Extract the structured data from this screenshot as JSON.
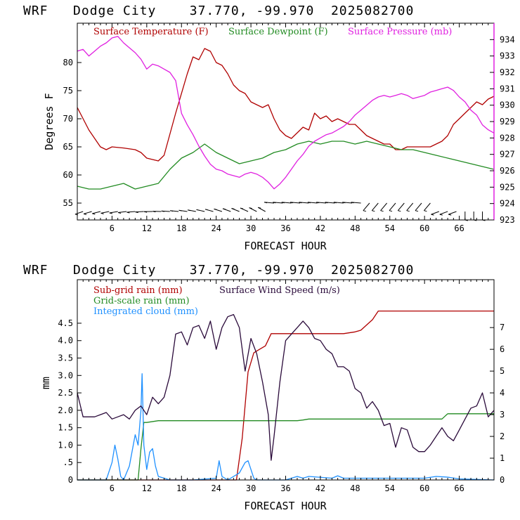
{
  "chart_data": [
    {
      "type": "line",
      "title": "WRF   Dodge City    37.770, -99.970  2025082700",
      "xlabel": "FORECAST HOUR",
      "ylabel": "Degrees F",
      "xlim": [
        0,
        72
      ],
      "ylim": [
        52,
        87
      ],
      "ylim_right": [
        923,
        935
      ],
      "xticks": [
        "6",
        "12",
        "18",
        "24",
        "30",
        "36",
        "42",
        "48",
        "54",
        "60",
        "66"
      ],
      "yticks_left": [
        "55",
        "60",
        "65",
        "70",
        "75",
        "80"
      ],
      "yticks_right": [
        "923",
        "924",
        "925",
        "926",
        "927",
        "928",
        "929",
        "930",
        "931",
        "932",
        "933",
        "934"
      ],
      "legend_position": "top",
      "colors": {
        "temp": "#b00000",
        "dew": "#228b22",
        "press": "#e020e0",
        "wind": "#000000"
      },
      "series": [
        {
          "name": "Surface Temperature (F)",
          "axis": "left",
          "x": [
            0,
            2,
            4,
            5,
            6,
            8,
            10,
            11,
            12,
            14,
            15,
            17,
            19,
            20,
            21,
            22,
            23,
            24,
            25,
            26,
            27,
            28,
            29,
            30,
            31,
            32,
            33,
            34,
            35,
            36,
            37,
            38,
            39,
            40,
            41,
            42,
            43,
            44,
            45,
            46,
            47,
            48,
            49,
            50,
            51,
            52,
            53,
            54,
            55,
            56,
            57,
            58,
            59,
            60,
            61,
            62,
            63,
            64,
            65,
            66,
            67,
            68,
            69,
            70,
            71,
            72
          ],
          "values": [
            72,
            68,
            65,
            64.5,
            65,
            64.8,
            64.5,
            64,
            63,
            62.5,
            63.5,
            71,
            78,
            81,
            80.5,
            82.5,
            82,
            80,
            79.5,
            78,
            76,
            75,
            74.5,
            73,
            72.5,
            72,
            72.5,
            70,
            68,
            67,
            66.5,
            67.5,
            68.5,
            68,
            71,
            70,
            70.5,
            69.5,
            70,
            69.5,
            69,
            69,
            68,
            67,
            66.5,
            66,
            65.5,
            65.5,
            64.5,
            64.5,
            65,
            65,
            65,
            65,
            65,
            65.5,
            66,
            67,
            69,
            70,
            71,
            72,
            73,
            72.5,
            73.5,
            74
          ]
        },
        {
          "name": "Surface Dewpoint (F)",
          "axis": "left",
          "x": [
            0,
            2,
            4,
            6,
            8,
            10,
            12,
            14,
            16,
            18,
            20,
            22,
            24,
            26,
            28,
            30,
            32,
            34,
            36,
            38,
            40,
            42,
            44,
            46,
            48,
            50,
            52,
            54,
            56,
            58,
            60,
            62,
            64,
            66,
            68,
            70,
            72
          ],
          "values": [
            58,
            57.5,
            57.5,
            58,
            58.5,
            57.5,
            58,
            58.5,
            61,
            63,
            64,
            65.5,
            64,
            63,
            62,
            62.5,
            63,
            64,
            64.5,
            65.5,
            66,
            65.5,
            66,
            66,
            65.5,
            66,
            65.5,
            65,
            64.5,
            64.5,
            64,
            63.5,
            63,
            62.5,
            62,
            61.5,
            61
          ]
        },
        {
          "name": "Surface Pressure (mb)",
          "axis": "right",
          "x": [
            0,
            1,
            2,
            3,
            4,
            5,
            6,
            7,
            8,
            9,
            10,
            11,
            12,
            13,
            14,
            15,
            16,
            17,
            18,
            19,
            20,
            21,
            22,
            23,
            24,
            25,
            26,
            27,
            28,
            29,
            30,
            31,
            32,
            33,
            34,
            35,
            36,
            37,
            38,
            39,
            40,
            41,
            42,
            43,
            44,
            45,
            46,
            47,
            48,
            49,
            50,
            51,
            52,
            53,
            54,
            55,
            56,
            57,
            58,
            59,
            60,
            61,
            62,
            63,
            64,
            65,
            66,
            67,
            68,
            69,
            70,
            71,
            72
          ],
          "values": [
            933.3,
            933.4,
            933,
            933.3,
            933.6,
            933.8,
            934.1,
            934.2,
            933.8,
            933.5,
            933.2,
            932.8,
            932.2,
            932.5,
            932.4,
            932.2,
            932,
            931.5,
            929.5,
            928.8,
            928.2,
            927.5,
            926.9,
            926.4,
            926.1,
            926,
            925.8,
            925.7,
            925.6,
            925.8,
            925.9,
            925.8,
            925.6,
            925.3,
            924.9,
            925.2,
            925.6,
            926.1,
            926.6,
            927,
            927.5,
            927.8,
            928,
            928.2,
            928.3,
            928.5,
            928.7,
            929,
            929.4,
            929.7,
            930,
            930.3,
            930.5,
            930.6,
            930.5,
            930.6,
            930.7,
            930.6,
            930.4,
            930.5,
            930.6,
            930.8,
            930.9,
            931,
            931.1,
            930.9,
            930.5,
            930.2,
            929.7,
            929.4,
            928.8,
            928.5,
            928.3
          ]
        }
      ],
      "wind_barbs": "plotted along the bottom of the panel, direction rotating through forecast hours"
    },
    {
      "type": "line",
      "title": "WRF   Dodge City    37.770, -99.970  2025082700",
      "xlabel": "FORECAST HOUR",
      "ylabel": "mm",
      "xlim": [
        0,
        72
      ],
      "ylim": [
        0,
        5.75
      ],
      "ylim_right": [
        0,
        9.2
      ],
      "xticks": [
        "6",
        "12",
        "18",
        "24",
        "30",
        "36",
        "42",
        "48",
        "54",
        "60",
        "66"
      ],
      "yticks_left": [
        "0",
        ".5",
        "1.0",
        "1.5",
        "2.0",
        "2.5",
        "3.0",
        "3.5",
        "4.0",
        "4.5"
      ],
      "yticks_left_values": [
        0,
        0.5,
        1.0,
        1.5,
        2.0,
        2.5,
        3.0,
        3.5,
        4.0,
        4.5
      ],
      "yticks_right": [
        "0",
        "1",
        "2",
        "3",
        "4",
        "5",
        "6",
        "7"
      ],
      "legend_position": "top-left",
      "colors": {
        "subgrid": "#b00000",
        "grid": "#228b22",
        "cloud": "#1e90ff",
        "wind": "#2a0a3a"
      },
      "series": [
        {
          "name": "Sub-grid rain (mm)",
          "axis": "left",
          "x": [
            0,
            27.5,
            28.5,
            29.5,
            30.5,
            31.5,
            32.5,
            33.5,
            40,
            46,
            48,
            49,
            50,
            51,
            52,
            72
          ],
          "values": [
            0,
            0,
            1.2,
            3.1,
            3.65,
            3.75,
            3.85,
            4.2,
            4.2,
            4.2,
            4.25,
            4.3,
            4.45,
            4.6,
            4.85,
            4.85
          ]
        },
        {
          "name": "Grid-scale rain (mm)",
          "axis": "left",
          "x": [
            0,
            10.5,
            11,
            11.5,
            12,
            14,
            20,
            30,
            38,
            39,
            40,
            46,
            50,
            55,
            63,
            64,
            72
          ],
          "values": [
            0,
            0,
            0.9,
            1.65,
            1.65,
            1.7,
            1.7,
            1.7,
            1.7,
            1.72,
            1.75,
            1.75,
            1.75,
            1.75,
            1.75,
            1.9,
            1.9
          ]
        },
        {
          "name": "Integrated cloud (mm)",
          "axis": "left",
          "x": [
            0,
            5,
            6,
            6.5,
            7,
            7.5,
            8,
            9,
            10,
            10.5,
            11,
            11.2,
            11.5,
            12,
            12.5,
            13,
            13.5,
            14,
            16,
            20,
            24,
            24.5,
            25,
            26,
            28,
            29,
            29.5,
            30,
            30.5,
            31,
            36,
            38,
            39,
            40,
            44,
            45,
            46,
            50,
            54,
            60,
            62,
            64,
            66,
            72
          ],
          "values": [
            0,
            0,
            0.5,
            1.0,
            0.6,
            0.1,
            0,
            0.4,
            1.3,
            1.0,
            2.0,
            3.05,
            1.0,
            0.3,
            0.8,
            0.9,
            0.4,
            0.1,
            0,
            0,
            0.05,
            0.55,
            0.1,
            0,
            0.2,
            0.5,
            0.55,
            0.3,
            0.05,
            0,
            0,
            0.1,
            0.05,
            0.1,
            0.05,
            0.12,
            0.05,
            0.05,
            0.05,
            0.05,
            0.1,
            0.08,
            0.03,
            0
          ]
        },
        {
          "name": "Surface Wind Speed (m/s)",
          "axis": "right",
          "x": [
            0,
            1,
            2,
            3,
            4,
            5,
            6,
            7,
            8,
            9,
            10,
            11,
            12,
            13,
            14,
            15,
            16,
            17,
            18,
            19,
            20,
            21,
            22,
            23,
            24,
            25,
            26,
            27,
            28,
            29,
            30,
            31,
            32,
            33,
            33.5,
            34,
            35,
            36,
            37,
            38,
            39,
            40,
            41,
            42,
            43,
            44,
            45,
            46,
            47,
            48,
            49,
            50,
            51,
            52,
            53,
            54,
            55,
            56,
            57,
            58,
            59,
            60,
            61,
            62,
            63,
            64,
            65,
            66,
            67,
            68,
            69,
            70,
            71,
            72
          ],
          "values": [
            4.0,
            2.9,
            2.9,
            2.9,
            3.0,
            3.1,
            2.8,
            2.9,
            3.0,
            2.8,
            3.2,
            3.4,
            3.0,
            3.8,
            3.5,
            3.8,
            4.8,
            6.7,
            6.8,
            6.2,
            7.0,
            7.1,
            6.5,
            7.3,
            6.0,
            7.0,
            7.5,
            7.6,
            7.0,
            5.0,
            6.5,
            5.8,
            4.5,
            3.0,
            0.9,
            2.0,
            4.5,
            6.4,
            6.7,
            7.0,
            7.3,
            7.0,
            6.5,
            6.4,
            6.0,
            5.8,
            5.2,
            5.2,
            5.0,
            4.2,
            4.0,
            3.3,
            3.6,
            3.2,
            2.5,
            2.6,
            1.5,
            2.4,
            2.3,
            1.5,
            1.3,
            1.3,
            1.6,
            2.0,
            2.4,
            2.0,
            1.8,
            2.3,
            2.8,
            3.3,
            3.4,
            4.0,
            2.9,
            3.2
          ]
        }
      ]
    }
  ]
}
